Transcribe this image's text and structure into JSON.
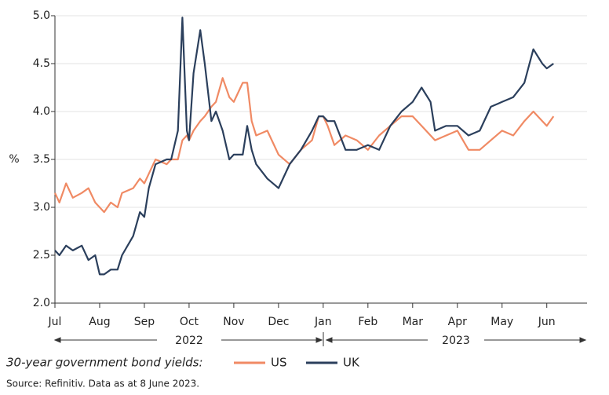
{
  "chart_data": {
    "type": "line",
    "y_label": "%",
    "legend_title": "30-year government bond yields:",
    "source": "Source: Refinitiv. Data as at 8 June 2023.",
    "year_labels": [
      "2022",
      "2023"
    ],
    "x": [
      0,
      0.1,
      0.25,
      0.4,
      0.6,
      0.75,
      0.9,
      1.0,
      1.1,
      1.25,
      1.4,
      1.5,
      1.75,
      1.9,
      2.0,
      2.1,
      2.25,
      2.5,
      2.6,
      2.75,
      2.85,
      2.95,
      3.0,
      3.1,
      3.25,
      3.35,
      3.5,
      3.6,
      3.75,
      3.9,
      4.0,
      4.2,
      4.3,
      4.4,
      4.5,
      4.75,
      5.0,
      5.25,
      5.5,
      5.75,
      5.9,
      6.0,
      6.1,
      6.25,
      6.5,
      6.75,
      7.0,
      7.25,
      7.5,
      7.75,
      8.0,
      8.2,
      8.4,
      8.5,
      8.75,
      9.0,
      9.25,
      9.5,
      9.75,
      10.0,
      10.25,
      10.5,
      10.7,
      10.9,
      11.0,
      11.15
    ],
    "series": [
      {
        "name": "US",
        "color": "#f08a64",
        "values": [
          3.15,
          3.05,
          3.25,
          3.1,
          3.15,
          3.2,
          3.05,
          3.0,
          2.95,
          3.05,
          3.0,
          3.15,
          3.2,
          3.3,
          3.25,
          3.35,
          3.5,
          3.45,
          3.5,
          3.5,
          3.7,
          3.75,
          3.7,
          3.8,
          3.9,
          3.95,
          4.05,
          4.1,
          4.35,
          4.15,
          4.1,
          4.3,
          4.3,
          3.9,
          3.75,
          3.8,
          3.55,
          3.45,
          3.6,
          3.7,
          3.95,
          3.95,
          3.85,
          3.65,
          3.75,
          3.7,
          3.6,
          3.75,
          3.85,
          3.95,
          3.95,
          3.85,
          3.75,
          3.7,
          3.75,
          3.8,
          3.6,
          3.6,
          3.7,
          3.8,
          3.75,
          3.9,
          4.0,
          3.9,
          3.85,
          3.95
        ]
      },
      {
        "name": "UK",
        "color": "#2b3f5c",
        "values": [
          2.55,
          2.5,
          2.6,
          2.55,
          2.6,
          2.45,
          2.5,
          2.3,
          2.3,
          2.35,
          2.35,
          2.5,
          2.7,
          2.95,
          2.9,
          3.2,
          3.45,
          3.5,
          3.5,
          3.8,
          4.98,
          3.8,
          3.7,
          4.4,
          4.85,
          4.5,
          3.9,
          4.0,
          3.8,
          3.5,
          3.55,
          3.55,
          3.85,
          3.6,
          3.45,
          3.3,
          3.2,
          3.45,
          3.6,
          3.8,
          3.95,
          3.95,
          3.9,
          3.9,
          3.6,
          3.6,
          3.65,
          3.6,
          3.85,
          4.0,
          4.1,
          4.25,
          4.1,
          3.8,
          3.85,
          3.85,
          3.75,
          3.8,
          4.05,
          4.1,
          4.15,
          4.3,
          4.65,
          4.5,
          4.45,
          4.5
        ]
      }
    ],
    "xlim": [
      0,
      11.9
    ],
    "xticks": [
      {
        "value": 0,
        "label": "Jul"
      },
      {
        "value": 1,
        "label": "Aug"
      },
      {
        "value": 2,
        "label": "Sep"
      },
      {
        "value": 3,
        "label": "Oct"
      },
      {
        "value": 4,
        "label": "Nov"
      },
      {
        "value": 5,
        "label": "Dec"
      },
      {
        "value": 6,
        "label": "Jan"
      },
      {
        "value": 7,
        "label": "Feb"
      },
      {
        "value": 8,
        "label": "Mar"
      },
      {
        "value": 9,
        "label": "Apr"
      },
      {
        "value": 10,
        "label": "May"
      },
      {
        "value": 11,
        "label": "Jun"
      }
    ],
    "ylim": [
      2.0,
      5.0
    ],
    "yticks": [
      {
        "value": 2.0,
        "label": "2.0"
      },
      2.5,
      {
        "value": 3.0,
        "label": "3.0"
      },
      3.5,
      {
        "value": 4.0,
        "label": "4.0"
      },
      4.5,
      {
        "value": 5.0,
        "label": "5.0"
      }
    ],
    "grid": true
  }
}
